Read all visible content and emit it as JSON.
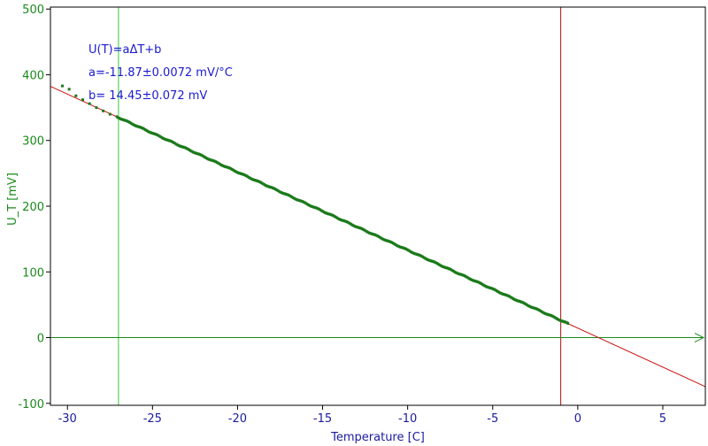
{
  "chart_data": {
    "type": "scatter",
    "xlabel": "Temperature [C]",
    "ylabel": "U_T [mV]",
    "xlim": [
      -31,
      7.5
    ],
    "ylim": [
      -103,
      503
    ],
    "x_ticks": [
      -30,
      -25,
      -20,
      -15,
      -10,
      -5,
      0,
      5
    ],
    "y_ticks": [
      -100,
      0,
      100,
      200,
      300,
      400,
      500
    ],
    "annotations": [
      "U(T)=aΔT+b",
      "a=-11.87±0.0072 mV/°C",
      "b= 14.45±0.072 mV"
    ],
    "fit": {
      "slope": -11.87,
      "intercept": 14.45,
      "x_range": [
        -31,
        7.5
      ]
    },
    "measurement": {
      "x_range": [
        -30.3,
        -0.5
      ],
      "note_points": [
        {
          "x": -30.3,
          "y": 383
        },
        {
          "x": -29.9,
          "y": 378
        },
        {
          "x": -29.5,
          "y": 368
        },
        {
          "x": -29.1,
          "y": 362
        },
        {
          "x": -28.7,
          "y": 356
        },
        {
          "x": -28.3,
          "y": 350
        },
        {
          "x": -27.9,
          "y": 345
        },
        {
          "x": -27.5,
          "y": 340
        }
      ]
    },
    "vertical_markers": [
      {
        "x": -27.0,
        "color": "#33cc33"
      },
      {
        "x": -1.0,
        "color": "#aa1111"
      }
    ],
    "zero_line": {
      "y": 0,
      "color": "#1a8a1a"
    },
    "colors": {
      "fit_line": "#cc1111",
      "points": "#1a7a1a",
      "frame": "#000000",
      "y_axis_text": "#1a8a1a",
      "x_axis_text": "#1a1aa0",
      "annotation_text": "#1a1ad0"
    },
    "grid": false
  }
}
